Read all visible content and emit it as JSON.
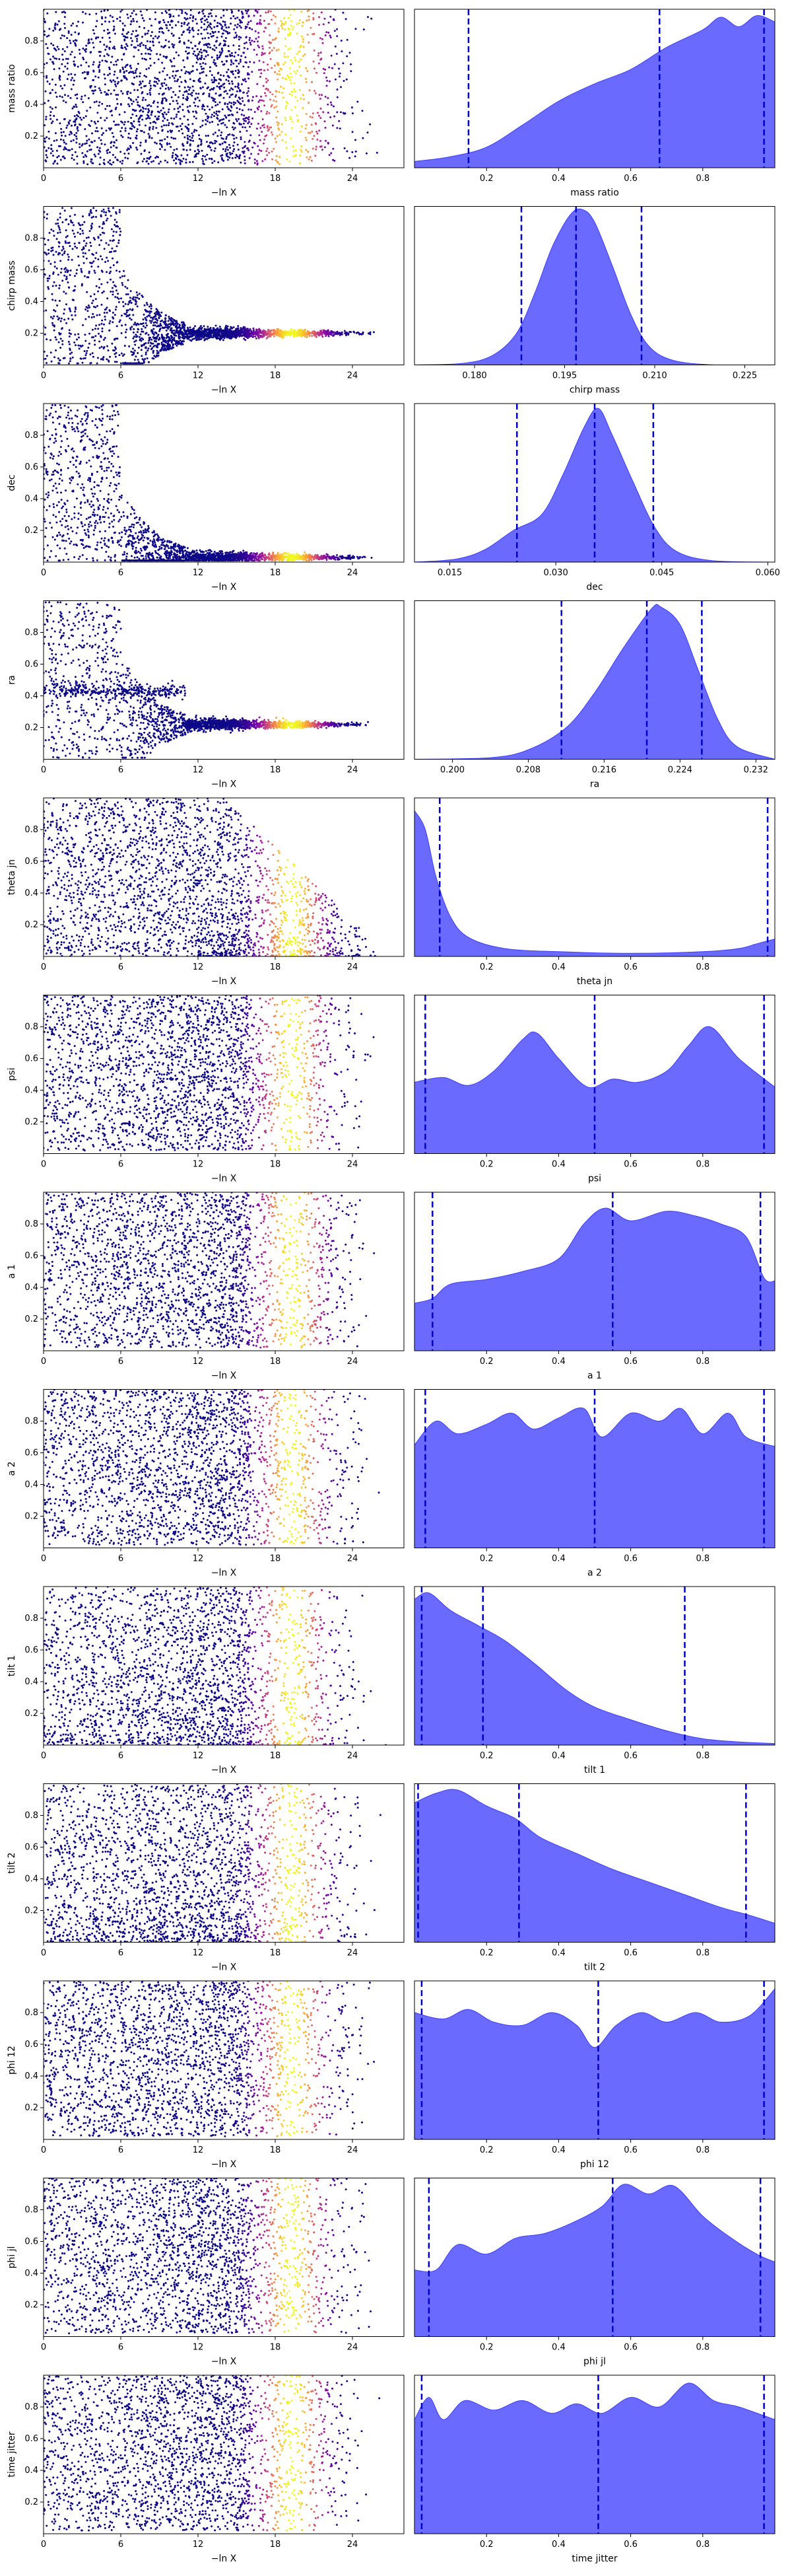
{
  "colors": {
    "kde_fill": "#6a6aff",
    "kde_edge": "#3c3cff",
    "quantile_line": "#0000cc",
    "colormap": [
      "#0d0887",
      "#5c01a6",
      "#9c179e",
      "#cc4778",
      "#ed7953",
      "#fdb42f",
      "#f0f921"
    ]
  },
  "chart_data": [
    {
      "row": 0,
      "type": "scatter",
      "ylabel": "mass ratio",
      "xlabel": "−ln X",
      "xlim": [
        0,
        28
      ],
      "ylim": [
        0,
        1
      ],
      "xticks": [
        "0",
        "6",
        "12",
        "18",
        "24"
      ],
      "yticks": [
        "0.2",
        "0.4",
        "0.6",
        "0.8"
      ],
      "pattern": "uniform"
    },
    {
      "row": 0,
      "type": "area",
      "xlabel": "mass ratio",
      "xlim": [
        0,
        1
      ],
      "xticks": [
        "0.2",
        "0.4",
        "0.6",
        "0.8"
      ],
      "quantiles": [
        0.15,
        0.68,
        0.97
      ],
      "density": [
        [
          0.0,
          0.04
        ],
        [
          0.1,
          0.07
        ],
        [
          0.2,
          0.13
        ],
        [
          0.3,
          0.27
        ],
        [
          0.4,
          0.42
        ],
        [
          0.5,
          0.53
        ],
        [
          0.6,
          0.62
        ],
        [
          0.7,
          0.76
        ],
        [
          0.8,
          0.87
        ],
        [
          0.85,
          0.95
        ],
        [
          0.9,
          0.89
        ],
        [
          0.95,
          0.96
        ],
        [
          1.0,
          0.92
        ]
      ]
    },
    {
      "row": 1,
      "type": "scatter",
      "ylabel": "chirp mass",
      "xlabel": "−ln X",
      "xlim": [
        0,
        28
      ],
      "ylim": [
        0,
        1
      ],
      "xticks": [
        "0",
        "6",
        "12",
        "18",
        "24"
      ],
      "yticks": [
        "0.2",
        "0.4",
        "0.6",
        "0.8"
      ],
      "pattern": "converge",
      "target": 0.2,
      "spread": 0.02
    },
    {
      "row": 1,
      "type": "area",
      "xlabel": "chirp mass",
      "xlim": [
        0.17,
        0.23
      ],
      "xticks": [
        "0.180",
        "0.195",
        "0.210",
        "0.225"
      ],
      "quantiles": [
        0.1878,
        0.1969,
        0.2078
      ],
      "density": [
        [
          0.17,
          0.0
        ],
        [
          0.178,
          0.01
        ],
        [
          0.183,
          0.06
        ],
        [
          0.187,
          0.2
        ],
        [
          0.19,
          0.45
        ],
        [
          0.193,
          0.75
        ],
        [
          0.196,
          0.95
        ],
        [
          0.198,
          0.98
        ],
        [
          0.2,
          0.9
        ],
        [
          0.203,
          0.62
        ],
        [
          0.206,
          0.32
        ],
        [
          0.209,
          0.12
        ],
        [
          0.213,
          0.03
        ],
        [
          0.22,
          0.0
        ],
        [
          0.23,
          0.0
        ]
      ]
    },
    {
      "row": 2,
      "type": "scatter",
      "ylabel": "dec",
      "xlabel": "−ln X",
      "xlim": [
        0,
        28
      ],
      "ylim": [
        0,
        1
      ],
      "xticks": [
        "0",
        "6",
        "12",
        "18",
        "24"
      ],
      "yticks": [
        "0.2",
        "0.4",
        "0.6",
        "0.8"
      ],
      "pattern": "converge",
      "target": 0.03,
      "spread": 0.02
    },
    {
      "row": 2,
      "type": "area",
      "xlabel": "dec",
      "xlim": [
        0.01,
        0.061
      ],
      "xticks": [
        "0.015",
        "0.030",
        "0.045",
        "0.060"
      ],
      "quantiles": [
        0.0245,
        0.0355,
        0.0438
      ],
      "density": [
        [
          0.01,
          0.0
        ],
        [
          0.016,
          0.02
        ],
        [
          0.02,
          0.08
        ],
        [
          0.024,
          0.2
        ],
        [
          0.028,
          0.3
        ],
        [
          0.031,
          0.55
        ],
        [
          0.034,
          0.85
        ],
        [
          0.036,
          0.97
        ],
        [
          0.038,
          0.8
        ],
        [
          0.041,
          0.5
        ],
        [
          0.044,
          0.22
        ],
        [
          0.047,
          0.07
        ],
        [
          0.052,
          0.01
        ],
        [
          0.061,
          0.0
        ]
      ]
    },
    {
      "row": 3,
      "type": "scatter",
      "ylabel": "ra",
      "xlabel": "−ln X",
      "xlim": [
        0,
        28
      ],
      "ylim": [
        0,
        1
      ],
      "xticks": [
        "0",
        "6",
        "12",
        "18",
        "24"
      ],
      "yticks": [
        "0.2",
        "0.4",
        "0.6",
        "0.8"
      ],
      "pattern": "converge",
      "target": 0.22,
      "spread": 0.02
    },
    {
      "row": 3,
      "type": "area",
      "xlabel": "ra",
      "xlim": [
        0.196,
        0.234
      ],
      "xticks": [
        "0.200",
        "0.208",
        "0.216",
        "0.224",
        "0.232"
      ],
      "quantiles": [
        0.2115,
        0.2205,
        0.2263
      ],
      "density": [
        [
          0.196,
          0.0
        ],
        [
          0.204,
          0.01
        ],
        [
          0.208,
          0.06
        ],
        [
          0.212,
          0.2
        ],
        [
          0.215,
          0.42
        ],
        [
          0.218,
          0.7
        ],
        [
          0.221,
          0.95
        ],
        [
          0.222,
          0.96
        ],
        [
          0.224,
          0.85
        ],
        [
          0.226,
          0.55
        ],
        [
          0.228,
          0.25
        ],
        [
          0.23,
          0.08
        ],
        [
          0.234,
          0.0
        ]
      ]
    },
    {
      "row": 4,
      "type": "scatter",
      "ylabel": "theta jn",
      "xlabel": "−ln X",
      "xlim": [
        0,
        28
      ],
      "ylim": [
        0,
        1
      ],
      "xticks": [
        "0",
        "6",
        "12",
        "18",
        "24"
      ],
      "yticks": [
        "0.2",
        "0.4",
        "0.6",
        "0.8"
      ],
      "pattern": "decay"
    },
    {
      "row": 4,
      "type": "area",
      "xlabel": "theta jn",
      "xlim": [
        0,
        1
      ],
      "xticks": [
        "0.2",
        "0.4",
        "0.6",
        "0.8"
      ],
      "quantiles": [
        0.07,
        0.98
      ],
      "density": [
        [
          0.0,
          0.92
        ],
        [
          0.03,
          0.8
        ],
        [
          0.06,
          0.5
        ],
        [
          0.1,
          0.25
        ],
        [
          0.15,
          0.12
        ],
        [
          0.25,
          0.05
        ],
        [
          0.4,
          0.03
        ],
        [
          0.6,
          0.02
        ],
        [
          0.8,
          0.03
        ],
        [
          0.9,
          0.05
        ],
        [
          0.95,
          0.08
        ],
        [
          1.0,
          0.11
        ]
      ]
    },
    {
      "row": 5,
      "type": "scatter",
      "ylabel": "psi",
      "xlabel": "−ln X",
      "xlim": [
        0,
        28
      ],
      "ylim": [
        0,
        1
      ],
      "xticks": [
        "0",
        "6",
        "12",
        "18",
        "24"
      ],
      "yticks": [
        "0.2",
        "0.4",
        "0.6",
        "0.8"
      ],
      "pattern": "uniform"
    },
    {
      "row": 5,
      "type": "area",
      "xlabel": "psi",
      "xlim": [
        0,
        1
      ],
      "xticks": [
        "0.2",
        "0.4",
        "0.6",
        "0.8"
      ],
      "quantiles": [
        0.03,
        0.5,
        0.97
      ],
      "density": [
        [
          0.0,
          0.45
        ],
        [
          0.08,
          0.48
        ],
        [
          0.15,
          0.43
        ],
        [
          0.22,
          0.52
        ],
        [
          0.3,
          0.72
        ],
        [
          0.34,
          0.76
        ],
        [
          0.4,
          0.6
        ],
        [
          0.48,
          0.42
        ],
        [
          0.55,
          0.47
        ],
        [
          0.62,
          0.45
        ],
        [
          0.7,
          0.52
        ],
        [
          0.76,
          0.68
        ],
        [
          0.82,
          0.8
        ],
        [
          0.9,
          0.6
        ],
        [
          1.0,
          0.42
        ]
      ]
    },
    {
      "row": 6,
      "type": "scatter",
      "ylabel": "a 1",
      "xlabel": "−ln X",
      "xlim": [
        0,
        28
      ],
      "ylim": [
        0,
        1
      ],
      "xticks": [
        "0",
        "6",
        "12",
        "18",
        "24"
      ],
      "yticks": [
        "0.2",
        "0.4",
        "0.6",
        "0.8"
      ],
      "pattern": "uniform"
    },
    {
      "row": 6,
      "type": "area",
      "xlabel": "a 1",
      "xlim": [
        0,
        1
      ],
      "xticks": [
        "0.2",
        "0.4",
        "0.6",
        "0.8"
      ],
      "quantiles": [
        0.05,
        0.55,
        0.96
      ],
      "density": [
        [
          0.0,
          0.3
        ],
        [
          0.05,
          0.33
        ],
        [
          0.1,
          0.42
        ],
        [
          0.2,
          0.45
        ],
        [
          0.3,
          0.5
        ],
        [
          0.4,
          0.58
        ],
        [
          0.47,
          0.8
        ],
        [
          0.53,
          0.9
        ],
        [
          0.6,
          0.82
        ],
        [
          0.7,
          0.88
        ],
        [
          0.78,
          0.85
        ],
        [
          0.85,
          0.8
        ],
        [
          0.92,
          0.72
        ],
        [
          0.97,
          0.46
        ],
        [
          1.0,
          0.44
        ]
      ]
    },
    {
      "row": 7,
      "type": "scatter",
      "ylabel": "a 2",
      "xlabel": "−ln X",
      "xlim": [
        0,
        28
      ],
      "ylim": [
        0,
        1
      ],
      "xticks": [
        "0",
        "6",
        "12",
        "18",
        "24"
      ],
      "yticks": [
        "0.2",
        "0.4",
        "0.6",
        "0.8"
      ],
      "pattern": "uniform"
    },
    {
      "row": 7,
      "type": "area",
      "xlabel": "a 2",
      "xlim": [
        0,
        1
      ],
      "xticks": [
        "0.2",
        "0.4",
        "0.6",
        "0.8"
      ],
      "quantiles": [
        0.03,
        0.5,
        0.97
      ],
      "density": [
        [
          0.0,
          0.65
        ],
        [
          0.06,
          0.8
        ],
        [
          0.12,
          0.72
        ],
        [
          0.2,
          0.78
        ],
        [
          0.27,
          0.85
        ],
        [
          0.33,
          0.75
        ],
        [
          0.4,
          0.82
        ],
        [
          0.47,
          0.88
        ],
        [
          0.52,
          0.7
        ],
        [
          0.6,
          0.85
        ],
        [
          0.68,
          0.8
        ],
        [
          0.74,
          0.88
        ],
        [
          0.8,
          0.72
        ],
        [
          0.87,
          0.85
        ],
        [
          0.92,
          0.7
        ],
        [
          1.0,
          0.64
        ]
      ]
    },
    {
      "row": 8,
      "type": "scatter",
      "ylabel": "tilt 1",
      "xlabel": "−ln X",
      "xlim": [
        0,
        28
      ],
      "ylim": [
        0,
        1
      ],
      "xticks": [
        "0",
        "6",
        "12",
        "18",
        "24"
      ],
      "yticks": [
        "0.2",
        "0.4",
        "0.6",
        "0.8"
      ],
      "pattern": "lowbias"
    },
    {
      "row": 8,
      "type": "area",
      "xlabel": "tilt 1",
      "xlim": [
        0,
        1
      ],
      "xticks": [
        "0.2",
        "0.4",
        "0.6",
        "0.8"
      ],
      "quantiles": [
        0.02,
        0.19,
        0.75
      ],
      "density": [
        [
          0.0,
          0.92
        ],
        [
          0.04,
          0.96
        ],
        [
          0.1,
          0.85
        ],
        [
          0.18,
          0.75
        ],
        [
          0.25,
          0.66
        ],
        [
          0.33,
          0.52
        ],
        [
          0.42,
          0.35
        ],
        [
          0.5,
          0.24
        ],
        [
          0.6,
          0.16
        ],
        [
          0.7,
          0.09
        ],
        [
          0.8,
          0.04
        ],
        [
          0.9,
          0.02
        ],
        [
          1.0,
          0.01
        ]
      ]
    },
    {
      "row": 9,
      "type": "scatter",
      "ylabel": "tilt 2",
      "xlabel": "−ln X",
      "xlim": [
        0,
        28
      ],
      "ylim": [
        0,
        1
      ],
      "xticks": [
        "0",
        "6",
        "12",
        "18",
        "24"
      ],
      "yticks": [
        "0.2",
        "0.4",
        "0.6",
        "0.8"
      ],
      "pattern": "lowbias"
    },
    {
      "row": 9,
      "type": "area",
      "xlabel": "tilt 2",
      "xlim": [
        0,
        1
      ],
      "xticks": [
        "0.2",
        "0.4",
        "0.6",
        "0.8"
      ],
      "quantiles": [
        0.01,
        0.29,
        0.92
      ],
      "density": [
        [
          0.0,
          0.88
        ],
        [
          0.06,
          0.94
        ],
        [
          0.12,
          0.96
        ],
        [
          0.2,
          0.86
        ],
        [
          0.28,
          0.78
        ],
        [
          0.35,
          0.66
        ],
        [
          0.45,
          0.56
        ],
        [
          0.55,
          0.46
        ],
        [
          0.65,
          0.38
        ],
        [
          0.75,
          0.3
        ],
        [
          0.85,
          0.22
        ],
        [
          0.93,
          0.17
        ],
        [
          1.0,
          0.12
        ]
      ]
    },
    {
      "row": 10,
      "type": "scatter",
      "ylabel": "phi 12",
      "xlabel": "−ln X",
      "xlim": [
        0,
        28
      ],
      "ylim": [
        0,
        1
      ],
      "xticks": [
        "0",
        "6",
        "12",
        "18",
        "24"
      ],
      "yticks": [
        "0.2",
        "0.4",
        "0.6",
        "0.8"
      ],
      "pattern": "uniform"
    },
    {
      "row": 10,
      "type": "area",
      "xlabel": "phi 12",
      "xlim": [
        0,
        1
      ],
      "xticks": [
        "0.2",
        "0.4",
        "0.6",
        "0.8"
      ],
      "quantiles": [
        0.02,
        0.51,
        0.97
      ],
      "density": [
        [
          0.0,
          0.8
        ],
        [
          0.08,
          0.76
        ],
        [
          0.15,
          0.82
        ],
        [
          0.22,
          0.74
        ],
        [
          0.3,
          0.72
        ],
        [
          0.38,
          0.8
        ],
        [
          0.45,
          0.72
        ],
        [
          0.5,
          0.58
        ],
        [
          0.56,
          0.72
        ],
        [
          0.63,
          0.8
        ],
        [
          0.7,
          0.74
        ],
        [
          0.78,
          0.8
        ],
        [
          0.85,
          0.74
        ],
        [
          0.93,
          0.78
        ],
        [
          1.0,
          0.95
        ]
      ]
    },
    {
      "row": 11,
      "type": "scatter",
      "ylabel": "phi jl",
      "xlabel": "−ln X",
      "xlim": [
        0,
        28
      ],
      "ylim": [
        0,
        1
      ],
      "xticks": [
        "0",
        "6",
        "12",
        "18",
        "24"
      ],
      "yticks": [
        "0.2",
        "0.4",
        "0.6",
        "0.8"
      ],
      "pattern": "uniform"
    },
    {
      "row": 11,
      "type": "area",
      "xlabel": "phi jl",
      "xlim": [
        0,
        1
      ],
      "xticks": [
        "0.2",
        "0.4",
        "0.6",
        "0.8"
      ],
      "quantiles": [
        0.04,
        0.55,
        0.96
      ],
      "density": [
        [
          0.0,
          0.42
        ],
        [
          0.06,
          0.42
        ],
        [
          0.12,
          0.58
        ],
        [
          0.2,
          0.52
        ],
        [
          0.28,
          0.62
        ],
        [
          0.36,
          0.65
        ],
        [
          0.44,
          0.72
        ],
        [
          0.52,
          0.82
        ],
        [
          0.58,
          0.96
        ],
        [
          0.65,
          0.9
        ],
        [
          0.72,
          0.95
        ],
        [
          0.8,
          0.76
        ],
        [
          0.88,
          0.62
        ],
        [
          0.95,
          0.52
        ],
        [
          1.0,
          0.47
        ]
      ]
    },
    {
      "row": 12,
      "type": "scatter",
      "ylabel": "time jitter",
      "xlabel": "−ln X",
      "xlim": [
        0,
        28
      ],
      "ylim": [
        0,
        1
      ],
      "xticks": [
        "0",
        "6",
        "12",
        "18",
        "24"
      ],
      "yticks": [
        "0.2",
        "0.4",
        "0.6",
        "0.8"
      ],
      "pattern": "uniform"
    },
    {
      "row": 12,
      "type": "area",
      "xlabel": "time jitter",
      "xlim": [
        0,
        1
      ],
      "xticks": [
        "0.2",
        "0.4",
        "0.6",
        "0.8"
      ],
      "quantiles": [
        0.02,
        0.51,
        0.97
      ],
      "density": [
        [
          0.0,
          0.72
        ],
        [
          0.04,
          0.86
        ],
        [
          0.08,
          0.72
        ],
        [
          0.14,
          0.84
        ],
        [
          0.22,
          0.78
        ],
        [
          0.3,
          0.84
        ],
        [
          0.38,
          0.76
        ],
        [
          0.45,
          0.82
        ],
        [
          0.52,
          0.76
        ],
        [
          0.6,
          0.86
        ],
        [
          0.68,
          0.8
        ],
        [
          0.76,
          0.95
        ],
        [
          0.83,
          0.84
        ],
        [
          0.9,
          0.8
        ],
        [
          1.0,
          0.72
        ]
      ]
    }
  ]
}
